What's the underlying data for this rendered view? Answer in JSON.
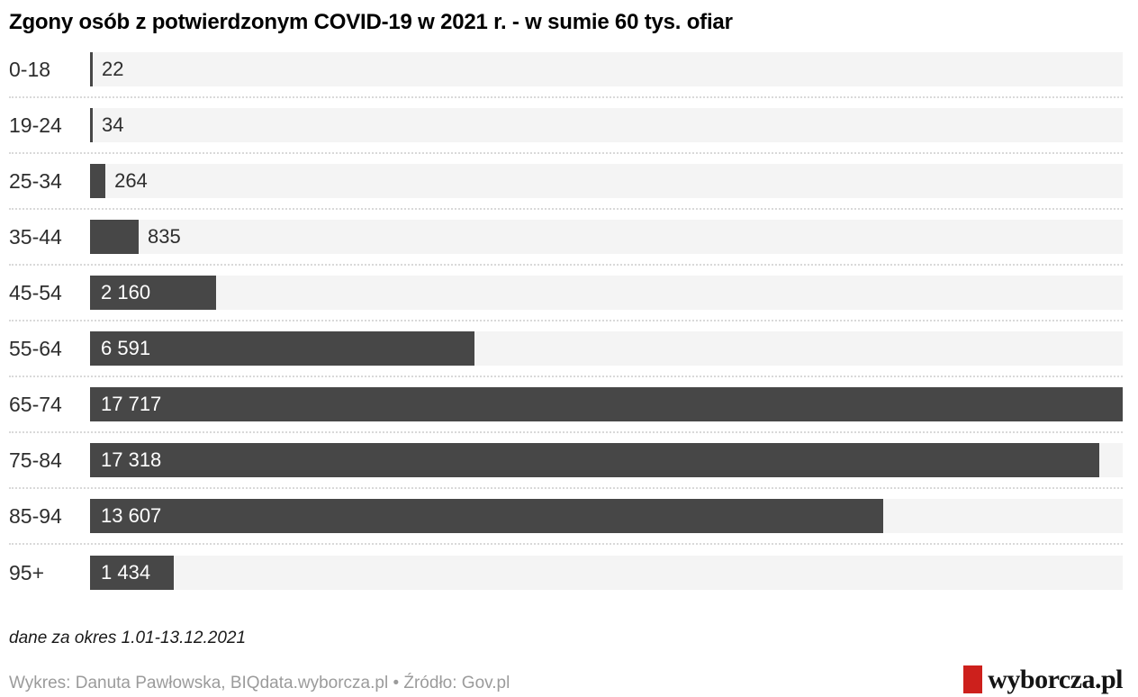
{
  "page": {
    "background": "#ffffff"
  },
  "chart_data": {
    "type": "bar",
    "orientation": "horizontal",
    "title": "Zgony osób z potwierdzonym COVID-19 w 2021 r. - w sumie 60 tys. ofiar",
    "categories": [
      "0-18",
      "19-24",
      "25-34",
      "35-44",
      "45-54",
      "55-64",
      "65-74",
      "75-84",
      "85-94",
      "95+"
    ],
    "values": [
      22,
      34,
      264,
      835,
      2160,
      6591,
      17717,
      17318,
      13607,
      1434
    ],
    "value_labels": [
      "22",
      "34",
      "264",
      "835",
      "2 160",
      "6 591",
      "17 717",
      "17 318",
      "13 607",
      "1 434"
    ],
    "xlim": [
      0,
      17717
    ],
    "xlabel": "",
    "ylabel": "",
    "legend": "none",
    "grid": "dotted-row-separators",
    "bar_color": "#474747",
    "track_color": "#f4f4f4"
  },
  "footer": {
    "note": "dane za okres 1.01-13.12.2021",
    "credit": "Wykres: Danuta Pawłowska, BIQdata.wyborcza.pl • Źródło: Gov.pl",
    "logo_text": "wyborcza.pl",
    "logo_accent_color": "#cd201c"
  }
}
